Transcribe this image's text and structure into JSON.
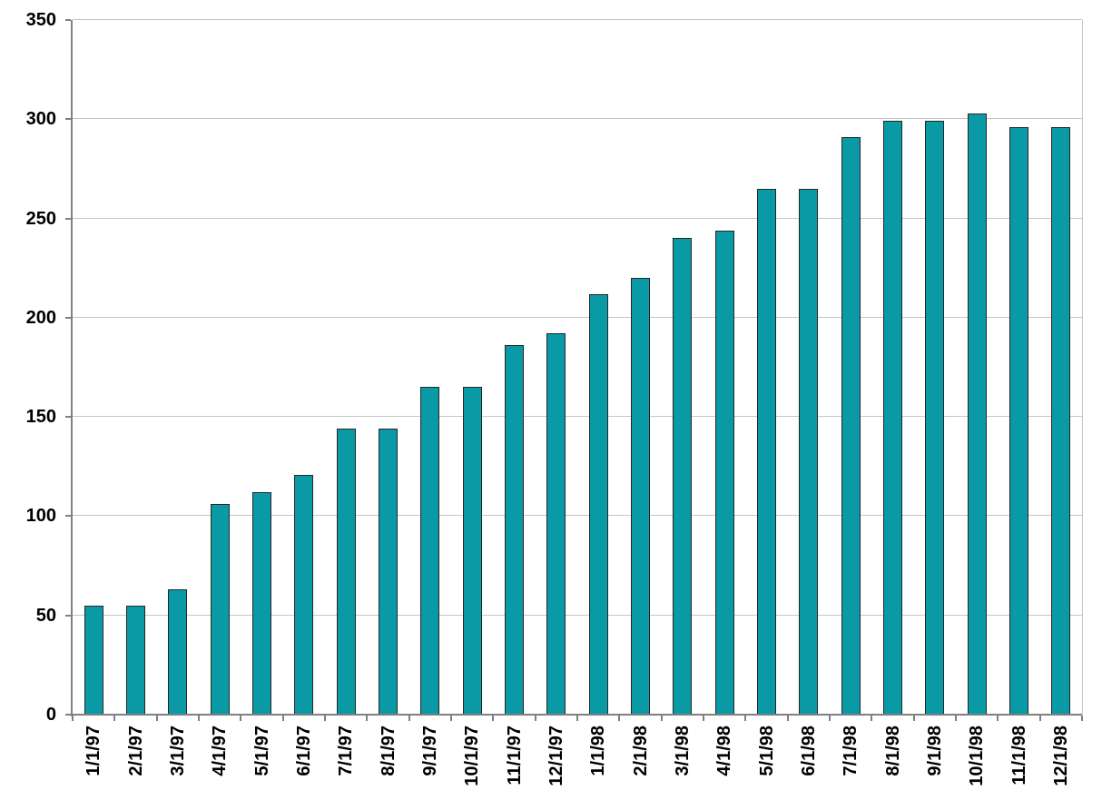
{
  "chart_data": {
    "type": "bar",
    "title": "",
    "xlabel": "",
    "ylabel": "",
    "categories": [
      "1/1/97",
      "2/1/97",
      "3/1/97",
      "4/1/97",
      "5/1/97",
      "6/1/97",
      "7/1/97",
      "8/1/97",
      "9/1/97",
      "10/1/97",
      "11/1/97",
      "12/1/97",
      "1/1/98",
      "2/1/98",
      "3/1/98",
      "4/1/98",
      "5/1/98",
      "6/1/98",
      "7/1/98",
      "8/1/98",
      "9/1/98",
      "10/1/98",
      "11/1/98",
      "12/1/98"
    ],
    "values": [
      55,
      55,
      63,
      106,
      112,
      121,
      144,
      144,
      165,
      165,
      186,
      192,
      212,
      220,
      240,
      244,
      265,
      265,
      291,
      299,
      299,
      303,
      296,
      296
    ],
    "ylim": [
      0,
      350
    ],
    "ytick_step": 50,
    "ytick_labels": [
      "0",
      "50",
      "100",
      "150",
      "200",
      "250",
      "300",
      "350"
    ],
    "grid": true,
    "legend": "none",
    "x_label_rotation_deg": -90,
    "colors": {
      "bar_fill": "#0a9aa5",
      "bar_border": "#262626",
      "axis": "#808080",
      "gridline": "#c6c6c6",
      "tick_label": "#000000",
      "background": "#ffffff"
    }
  }
}
